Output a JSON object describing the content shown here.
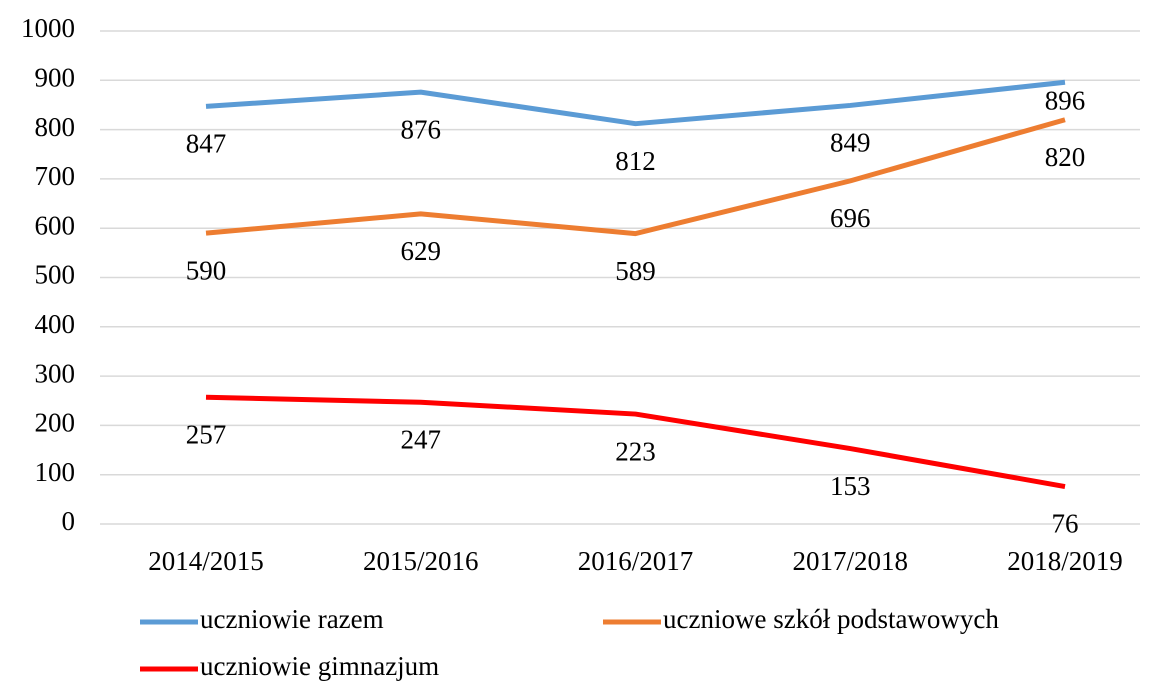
{
  "chart_data": {
    "type": "line",
    "categories": [
      "2014/2015",
      "2015/2016",
      "2016/2017",
      "2017/2018",
      "2018/2019"
    ],
    "series": [
      {
        "name": "uczniowie razem",
        "color": "#5b9bd5",
        "values": [
          847,
          876,
          812,
          849,
          896
        ]
      },
      {
        "name": "uczniowe szkół podstawowych",
        "color": "#ed7d31",
        "values": [
          590,
          629,
          589,
          696,
          820
        ]
      },
      {
        "name": "uczniowie gimnazjum",
        "color": "#ff0000",
        "values": [
          257,
          247,
          223,
          153,
          76
        ]
      }
    ],
    "ylim": [
      0,
      1000
    ],
    "yticks": [
      0,
      100,
      200,
      300,
      400,
      500,
      600,
      700,
      800,
      900,
      1000
    ],
    "grid": true
  }
}
